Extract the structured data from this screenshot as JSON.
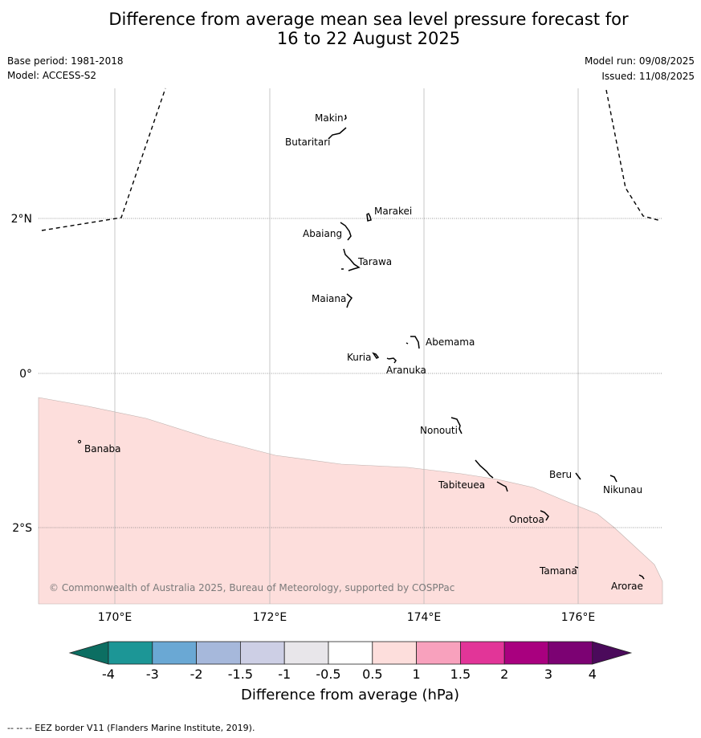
{
  "title": {
    "line1": "Difference from average mean sea level pressure forecast for",
    "line2": "16 to 22 August 2025"
  },
  "meta": {
    "base_period": "Base period: 1981-2018",
    "model": "Model: ACCESS-S2",
    "model_run": "Model run: 09/08/2025",
    "issued": "Issued: 11/08/2025"
  },
  "map": {
    "lon_ticks": [
      "170°E",
      "172°E",
      "174°E",
      "176°E"
    ],
    "lat_ticks": [
      "2°N",
      "0°",
      "2°S"
    ],
    "anomaly_region": {
      "range_hpa": "0.5 to 1",
      "color": "#fddedc"
    },
    "places": [
      "Makin",
      "Butaritari",
      "Marakei",
      "Abaiang",
      "Tarawa",
      "Maiana",
      "Abemama",
      "Kuria",
      "Aranuka",
      "Nonouti",
      "Banaba",
      "Beru",
      "Nikunau",
      "Tabiteuea",
      "Onotoa",
      "Tamana",
      "Arorae"
    ],
    "copyright": "© Commonwealth of Australia 2025, Bureau of Meteorology, supported by COSPPac"
  },
  "colorbar": {
    "ticks": [
      "-4",
      "-3",
      "-2",
      "-1.5",
      "-1",
      "-0.5",
      "0.5",
      "1",
      "1.5",
      "2",
      "3",
      "4"
    ],
    "colors": [
      "#0c6e62",
      "#1c9696",
      "#6aa8d4",
      "#a6b8db",
      "#cdcfe5",
      "#e8e6ea",
      "#ffffff",
      "#fddedc",
      "#f8a1bd",
      "#e23598",
      "#a9007f",
      "#7c0273",
      "#4b0a5b"
    ],
    "label": "Difference from average (hPa)"
  },
  "footnote": "--  --  -- EEZ border V11 (Flanders Marine Institute, 2019)."
}
